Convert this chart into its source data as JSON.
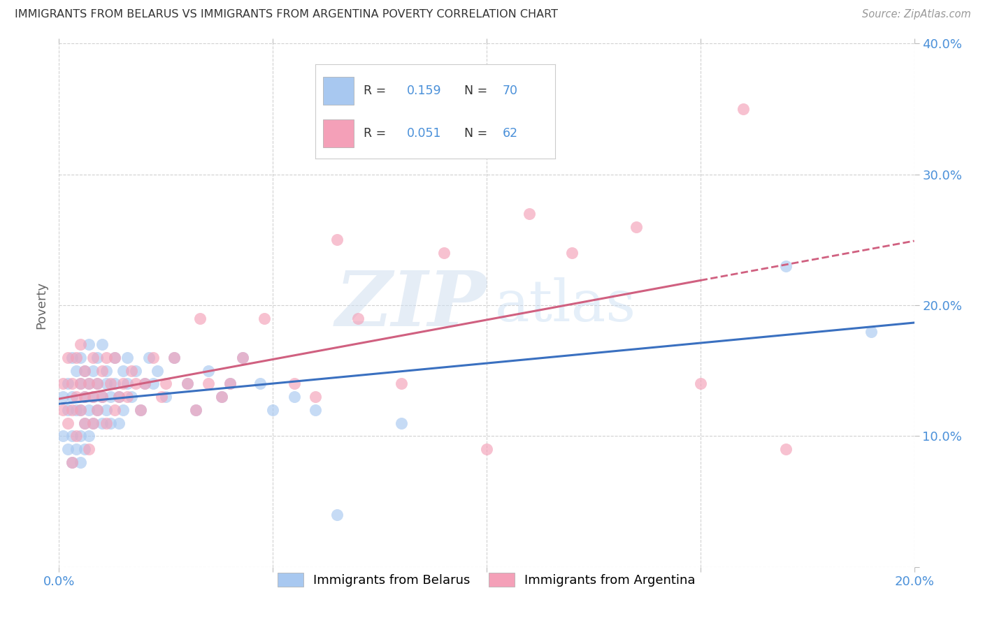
{
  "title": "IMMIGRANTS FROM BELARUS VS IMMIGRANTS FROM ARGENTINA POVERTY CORRELATION CHART",
  "source": "Source: ZipAtlas.com",
  "ylabel": "Poverty",
  "xlim": [
    0.0,
    0.2
  ],
  "ylim": [
    0.0,
    0.4
  ],
  "belarus_color": "#A8C8F0",
  "argentina_color": "#F4A0B8",
  "belarus_line_color": "#3A70C0",
  "argentina_line_color": "#D06080",
  "R_belarus": 0.159,
  "N_belarus": 70,
  "R_argentina": 0.051,
  "N_argentina": 62,
  "legend_label_belarus": "Immigrants from Belarus",
  "legend_label_argentina": "Immigrants from Argentina",
  "watermark_zip": "ZIP",
  "watermark_atlas": "atlas",
  "background_color": "#FFFFFF",
  "grid_color": "#CCCCCC",
  "title_color": "#444444",
  "source_color": "#888888",
  "axis_label_color": "#666666",
  "tick_label_color": "#4A90D9",
  "belarus_x": [
    0.001,
    0.001,
    0.002,
    0.002,
    0.002,
    0.003,
    0.003,
    0.003,
    0.003,
    0.004,
    0.004,
    0.004,
    0.005,
    0.005,
    0.005,
    0.005,
    0.005,
    0.006,
    0.006,
    0.006,
    0.006,
    0.007,
    0.007,
    0.007,
    0.007,
    0.008,
    0.008,
    0.008,
    0.009,
    0.009,
    0.009,
    0.01,
    0.01,
    0.01,
    0.011,
    0.011,
    0.011,
    0.012,
    0.012,
    0.013,
    0.013,
    0.014,
    0.014,
    0.015,
    0.015,
    0.016,
    0.016,
    0.017,
    0.018,
    0.019,
    0.02,
    0.021,
    0.022,
    0.023,
    0.025,
    0.027,
    0.03,
    0.032,
    0.035,
    0.038,
    0.04,
    0.043,
    0.047,
    0.05,
    0.055,
    0.06,
    0.065,
    0.08,
    0.17,
    0.19
  ],
  "belarus_y": [
    0.13,
    0.1,
    0.14,
    0.12,
    0.09,
    0.13,
    0.1,
    0.16,
    0.08,
    0.12,
    0.15,
    0.09,
    0.14,
    0.12,
    0.1,
    0.16,
    0.08,
    0.13,
    0.11,
    0.15,
    0.09,
    0.14,
    0.17,
    0.12,
    0.1,
    0.13,
    0.15,
    0.11,
    0.14,
    0.12,
    0.16,
    0.13,
    0.11,
    0.17,
    0.14,
    0.12,
    0.15,
    0.13,
    0.11,
    0.14,
    0.16,
    0.13,
    0.11,
    0.15,
    0.12,
    0.14,
    0.16,
    0.13,
    0.15,
    0.12,
    0.14,
    0.16,
    0.14,
    0.15,
    0.13,
    0.16,
    0.14,
    0.12,
    0.15,
    0.13,
    0.14,
    0.16,
    0.14,
    0.12,
    0.13,
    0.12,
    0.04,
    0.11,
    0.23,
    0.18
  ],
  "argentina_x": [
    0.001,
    0.001,
    0.002,
    0.002,
    0.003,
    0.003,
    0.003,
    0.004,
    0.004,
    0.004,
    0.005,
    0.005,
    0.005,
    0.006,
    0.006,
    0.006,
    0.007,
    0.007,
    0.008,
    0.008,
    0.008,
    0.009,
    0.009,
    0.01,
    0.01,
    0.011,
    0.011,
    0.012,
    0.013,
    0.013,
    0.014,
    0.015,
    0.016,
    0.017,
    0.018,
    0.019,
    0.02,
    0.022,
    0.024,
    0.025,
    0.027,
    0.03,
    0.032,
    0.033,
    0.035,
    0.038,
    0.04,
    0.043,
    0.048,
    0.055,
    0.06,
    0.065,
    0.07,
    0.08,
    0.09,
    0.1,
    0.11,
    0.12,
    0.135,
    0.15,
    0.16,
    0.17
  ],
  "argentina_y": [
    0.14,
    0.12,
    0.16,
    0.11,
    0.14,
    0.12,
    0.08,
    0.13,
    0.16,
    0.1,
    0.14,
    0.12,
    0.17,
    0.13,
    0.11,
    0.15,
    0.14,
    0.09,
    0.13,
    0.16,
    0.11,
    0.14,
    0.12,
    0.15,
    0.13,
    0.16,
    0.11,
    0.14,
    0.12,
    0.16,
    0.13,
    0.14,
    0.13,
    0.15,
    0.14,
    0.12,
    0.14,
    0.16,
    0.13,
    0.14,
    0.16,
    0.14,
    0.12,
    0.19,
    0.14,
    0.13,
    0.14,
    0.16,
    0.19,
    0.14,
    0.13,
    0.25,
    0.19,
    0.14,
    0.24,
    0.09,
    0.27,
    0.24,
    0.26,
    0.14,
    0.35,
    0.09
  ]
}
